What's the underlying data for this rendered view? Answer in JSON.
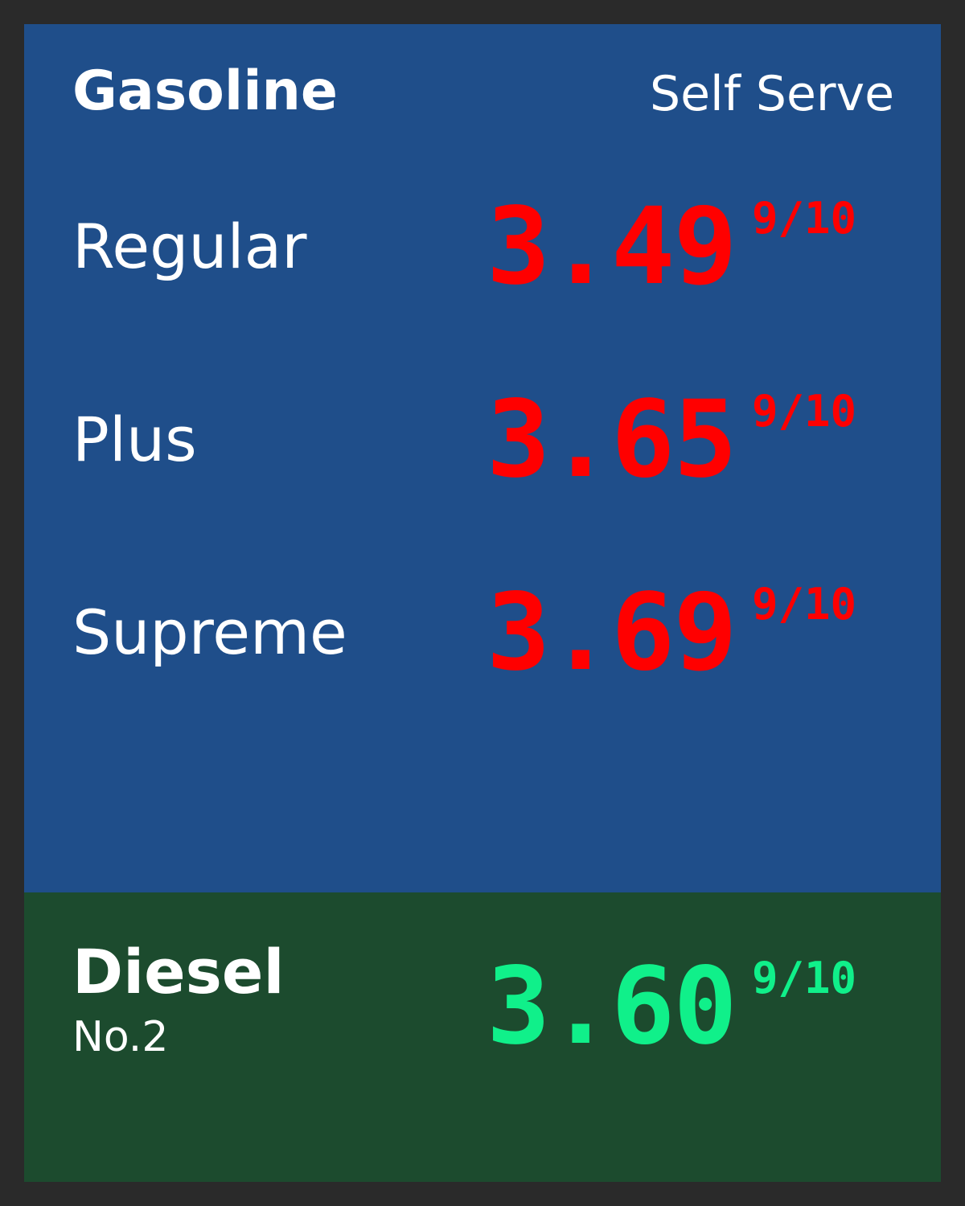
{
  "gasoline": {
    "title": "Gasoline",
    "service": "Self Serve",
    "grades": [
      {
        "label": "Regular",
        "price": "3.49",
        "fraction": "9/10"
      },
      {
        "label": "Plus",
        "price": "3.65",
        "fraction": "9/10"
      },
      {
        "label": "Supreme",
        "price": "3.69",
        "fraction": "9/10"
      }
    ]
  },
  "diesel": {
    "title": "Diesel",
    "subtitle": "No.2",
    "price": "3.60",
    "fraction": "9/10"
  },
  "colors": {
    "frame": "#2a2a2a",
    "gas_panel": "#1f4e8a",
    "diesel_panel": "#1c4b2e",
    "gas_price": "#ff0000",
    "diesel_price": "#10f08a",
    "label_text": "#ffffff"
  }
}
